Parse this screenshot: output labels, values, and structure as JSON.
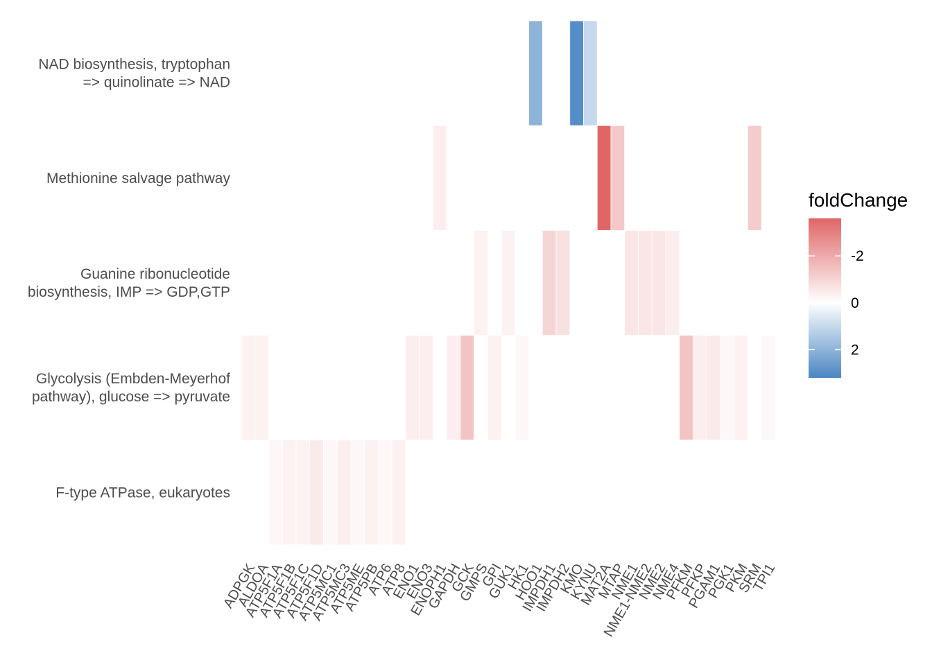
{
  "chart_data": {
    "type": "heatmap",
    "title": "",
    "xlabel": "",
    "ylabel": "",
    "legend": {
      "title": "foldChange",
      "ticks": [
        "-2",
        "0",
        "2"
      ],
      "tick_values": [
        -2,
        0,
        2
      ],
      "range": [
        -3.6,
        3.2
      ],
      "low_color": "#e06666",
      "mid_color": "#ffffff",
      "high_color": "#4a86c2",
      "placement": "right"
    },
    "x_categories": [
      "ADPGK",
      "ALDOA",
      "ATP5F1A",
      "ATP5F1B",
      "ATP5F1C",
      "ATP5F1D",
      "ATP5MC1",
      "ATP5MC3",
      "ATP5ME",
      "ATP5PB",
      "ATP6",
      "ATP8",
      "ENO1",
      "ENO3",
      "ENOPH1",
      "GAPDH",
      "GCK",
      "GMPS",
      "GPI",
      "GUK1",
      "HK1",
      "HOO1",
      "IMPDH1",
      "IMPDH2",
      "KMO",
      "KYNU",
      "MAT2A",
      "MTAP",
      "NME1",
      "NME1-NME2",
      "NME2",
      "NME4",
      "PFKM",
      "PFKP",
      "PGAM1",
      "PGK1",
      "PKM",
      "SRM",
      "TPI1"
    ],
    "y_categories": [
      {
        "line1": "NAD biosynthesis, tryptophan",
        "line2": "=> quinolinate => NAD"
      },
      {
        "line1": "Methionine salvage pathway",
        "line2": ""
      },
      {
        "line1": "Guanine ribonucleotide",
        "line2": "biosynthesis, IMP => GDP,GTP"
      },
      {
        "line1": "Glycolysis (Embden-Meyerhof",
        "line2": "pathway), glucose => pyruvate"
      },
      {
        "line1": "F-type ATPase, eukaryotes",
        "line2": ""
      }
    ],
    "cells": [
      {
        "x": "HOO1",
        "y": 0,
        "value": 2.0
      },
      {
        "x": "KMO",
        "y": 0,
        "value": 3.0
      },
      {
        "x": "KYNU",
        "y": 0,
        "value": 1.0
      },
      {
        "x": "ENOPH1",
        "y": 1,
        "value": -0.4
      },
      {
        "x": "MAT2A",
        "y": 1,
        "value": -3.6
      },
      {
        "x": "MTAP",
        "y": 1,
        "value": -1.3
      },
      {
        "x": "SRM",
        "y": 1,
        "value": -1.2
      },
      {
        "x": "GMPS",
        "y": 2,
        "value": -0.3
      },
      {
        "x": "GUK1",
        "y": 2,
        "value": -0.3
      },
      {
        "x": "IMPDH1",
        "y": 2,
        "value": -1.0
      },
      {
        "x": "IMPDH2",
        "y": 2,
        "value": -0.7
      },
      {
        "x": "NME1",
        "y": 2,
        "value": -0.6
      },
      {
        "x": "NME1-NME2",
        "y": 2,
        "value": -0.6
      },
      {
        "x": "NME2",
        "y": 2,
        "value": -0.6
      },
      {
        "x": "NME4",
        "y": 2,
        "value": -0.4
      },
      {
        "x": "ADPGK",
        "y": 3,
        "value": -0.3
      },
      {
        "x": "ALDOA",
        "y": 3,
        "value": -0.3
      },
      {
        "x": "ENO1",
        "y": 3,
        "value": -0.4
      },
      {
        "x": "ENO3",
        "y": 3,
        "value": -0.4
      },
      {
        "x": "GAPDH",
        "y": 3,
        "value": -0.4
      },
      {
        "x": "GCK",
        "y": 3,
        "value": -1.4
      },
      {
        "x": "GPI",
        "y": 3,
        "value": -0.3
      },
      {
        "x": "HK1",
        "y": 3,
        "value": -0.2
      },
      {
        "x": "PFKM",
        "y": 3,
        "value": -1.4
      },
      {
        "x": "PFKP",
        "y": 3,
        "value": -0.4
      },
      {
        "x": "PGAM1",
        "y": 3,
        "value": -0.5
      },
      {
        "x": "PGK1",
        "y": 3,
        "value": -0.2
      },
      {
        "x": "PKM",
        "y": 3,
        "value": -0.3
      },
      {
        "x": "TPI1",
        "y": 3,
        "value": -0.2
      },
      {
        "x": "ATP5F1A",
        "y": 4,
        "value": -0.2
      },
      {
        "x": "ATP5F1B",
        "y": 4,
        "value": -0.3
      },
      {
        "x": "ATP5F1C",
        "y": 4,
        "value": -0.3
      },
      {
        "x": "ATP5F1D",
        "y": 4,
        "value": -0.5
      },
      {
        "x": "ATP5MC1",
        "y": 4,
        "value": -0.2
      },
      {
        "x": "ATP5MC3",
        "y": 4,
        "value": -0.4
      },
      {
        "x": "ATP5ME",
        "y": 4,
        "value": -0.2
      },
      {
        "x": "ATP5PB",
        "y": 4,
        "value": -0.3
      },
      {
        "x": "ATP6",
        "y": 4,
        "value": -0.2
      },
      {
        "x": "ATP8",
        "y": 4,
        "value": -0.3
      }
    ]
  }
}
